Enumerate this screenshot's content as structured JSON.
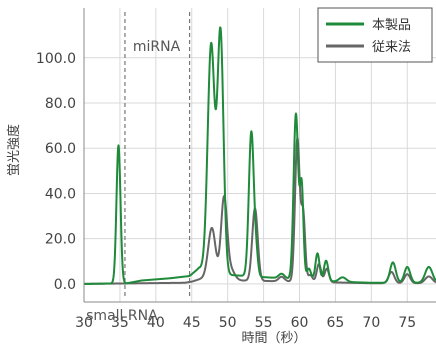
{
  "chart_data": {
    "type": "line",
    "xlabel": "時間（秒）",
    "ylabel": "蛍光強度",
    "xlim": [
      30,
      79
    ],
    "ylim": [
      -8,
      122
    ],
    "x_ticks": [
      "30",
      "35",
      "40",
      "45",
      "50",
      "55",
      "60",
      "65",
      "70",
      "75"
    ],
    "y_ticks": [
      "0.0",
      "20.0",
      "40.0",
      "60.0",
      "80.0",
      "100.0"
    ],
    "grid": true,
    "legend": "top-right",
    "annotations": [
      {
        "text": "miRNA",
        "x": 36.8,
        "y": 103
      },
      {
        "text": "small RNA",
        "x": 30.3,
        "y": -16
      }
    ],
    "vlines": [
      35.7,
      44.7
    ],
    "series": [
      {
        "name": "本製品",
        "color": "#1f8a3a",
        "peaks": [
          [
            34.8,
            61,
            0.28
          ],
          [
            47.7,
            100,
            0.48
          ],
          [
            49.0,
            106,
            0.42
          ],
          [
            53.3,
            64,
            0.35
          ],
          [
            54.0,
            8,
            0.25
          ],
          [
            57.5,
            2,
            0.4
          ],
          [
            59.5,
            73,
            0.32
          ],
          [
            60.3,
            41,
            0.25
          ],
          [
            61.3,
            5,
            0.3
          ],
          [
            62.5,
            12,
            0.28
          ],
          [
            63.7,
            9,
            0.3
          ],
          [
            66.0,
            2,
            0.5
          ],
          [
            73.0,
            9,
            0.4
          ],
          [
            75.0,
            7,
            0.4
          ],
          [
            78.0,
            7,
            0.5
          ]
        ],
        "baseline": [
          [
            30,
            0
          ],
          [
            36,
            0.3
          ],
          [
            38,
            1.5
          ],
          [
            42,
            2.5
          ],
          [
            44.7,
            3.5
          ],
          [
            46,
            7
          ],
          [
            50,
            4
          ],
          [
            55,
            3
          ],
          [
            60,
            2
          ],
          [
            65,
            1
          ],
          [
            70,
            0.5
          ],
          [
            79,
            0.5
          ]
        ]
      },
      {
        "name": "従来法",
        "color": "#666666",
        "peaks": [
          [
            47.8,
            22,
            0.5
          ],
          [
            49.5,
            36,
            0.42
          ],
          [
            50.5,
            4,
            0.5
          ],
          [
            53.8,
            32,
            0.38
          ],
          [
            57.5,
            2,
            0.4
          ],
          [
            59.7,
            63,
            0.32
          ],
          [
            60.5,
            30,
            0.28
          ],
          [
            61.5,
            3,
            0.3
          ],
          [
            62.7,
            8,
            0.3
          ],
          [
            63.8,
            6,
            0.3
          ],
          [
            72.8,
            5,
            0.4
          ],
          [
            75.0,
            4,
            0.4
          ],
          [
            78.0,
            3,
            0.5
          ]
        ],
        "baseline": [
          [
            30,
            0
          ],
          [
            44,
            0.5
          ],
          [
            45,
            1
          ],
          [
            47,
            3
          ],
          [
            52,
            1.5
          ],
          [
            60,
            1
          ],
          [
            70,
            0.3
          ],
          [
            79,
            0.3
          ]
        ]
      }
    ]
  }
}
